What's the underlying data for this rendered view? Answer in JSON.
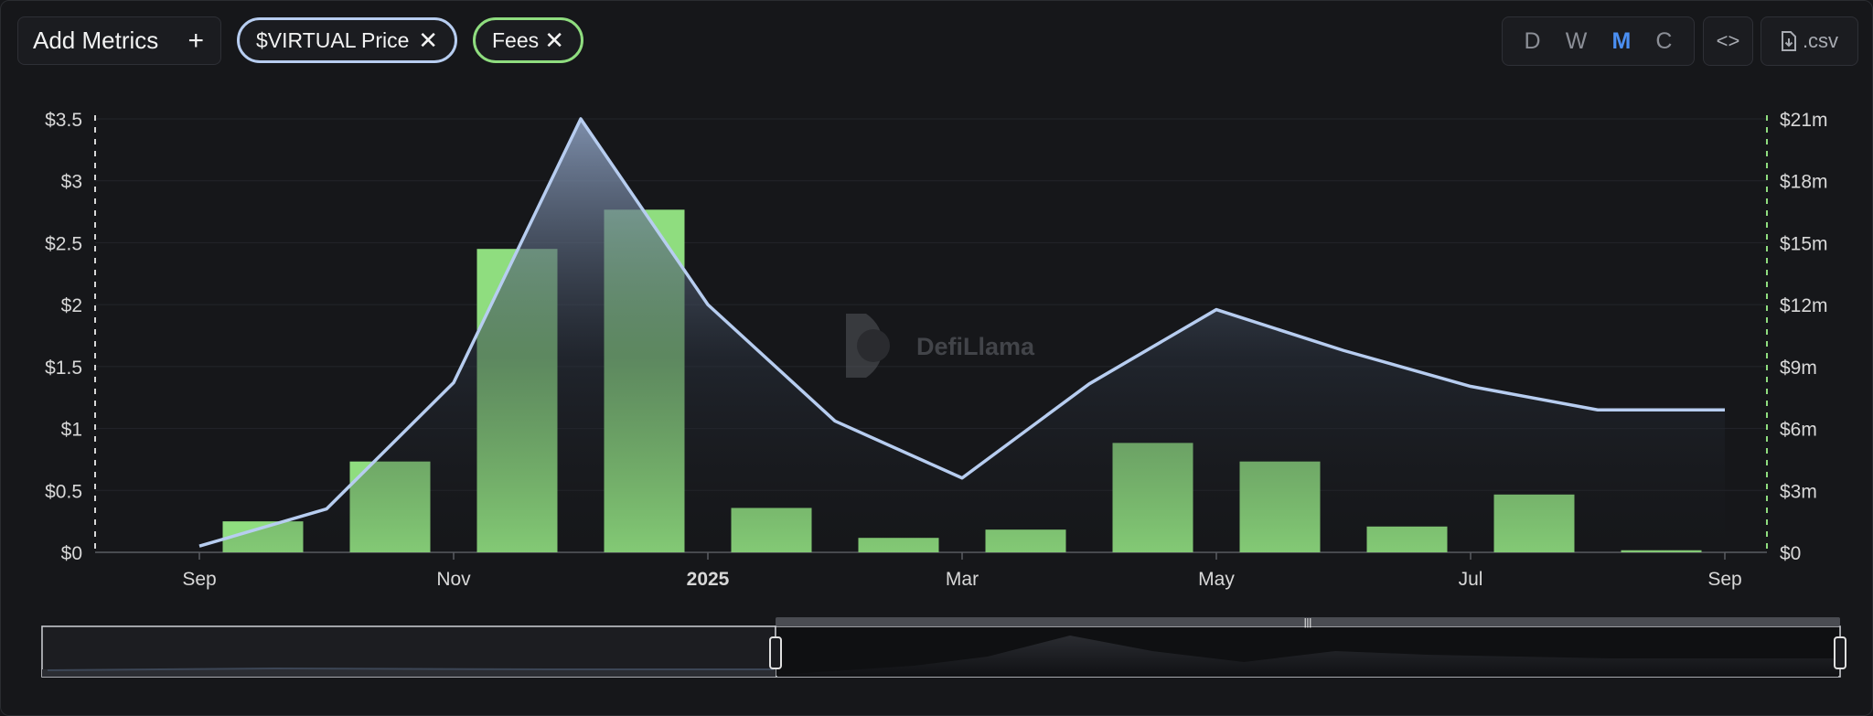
{
  "toolbar": {
    "add_metrics_label": "Add Metrics",
    "metrics": [
      {
        "label": "$VIRTUAL Price",
        "color": "#b7cdf0"
      },
      {
        "label": "Fees",
        "color": "#8fdd7f"
      }
    ],
    "intervals": [
      "D",
      "W",
      "M",
      "C"
    ],
    "active_interval": "M",
    "csv_label": ".csv"
  },
  "watermark": {
    "text": "DefiLlama"
  },
  "chart_data": {
    "type": "line+bar",
    "x_labels": [
      "Sep",
      "Nov",
      "2025",
      "Mar",
      "May",
      "Jul",
      "Sep"
    ],
    "y_left_ticks": [
      "$0",
      "$0.5",
      "$1",
      "$1.5",
      "$2",
      "$2.5",
      "$3",
      "$3.5"
    ],
    "y_right_ticks": [
      "$0",
      "$3m",
      "$6m",
      "$9m",
      "$12m",
      "$15m",
      "$18m",
      "$21m"
    ],
    "y_left_range": [
      0,
      3.5
    ],
    "y_right_range": [
      0,
      21000000
    ],
    "x_range": [
      "2024-09",
      "2025-09"
    ],
    "grid": true,
    "series": [
      {
        "name": "$VIRTUAL Price",
        "type": "line-area",
        "axis": "left",
        "color": "#b7cdf0",
        "points": [
          {
            "x": "2024-09",
            "y": 0.05
          },
          {
            "x": "2024-10",
            "y": 0.35
          },
          {
            "x": "2024-11",
            "y": 1.37
          },
          {
            "x": "2024-12",
            "y": 3.5
          },
          {
            "x": "2025-01",
            "y": 2.0
          },
          {
            "x": "2025-02",
            "y": 1.06
          },
          {
            "x": "2025-03",
            "y": 0.6
          },
          {
            "x": "2025-04",
            "y": 1.36
          },
          {
            "x": "2025-05",
            "y": 1.96
          },
          {
            "x": "2025-06",
            "y": 1.63
          },
          {
            "x": "2025-07",
            "y": 1.34
          },
          {
            "x": "2025-08",
            "y": 1.15
          },
          {
            "x": "2025-09",
            "y": 1.15
          }
        ]
      },
      {
        "name": "Fees",
        "type": "bar",
        "axis": "right",
        "color": "#8fdd7f",
        "points": [
          {
            "x": "2024-10",
            "y": 1500000
          },
          {
            "x": "2024-11",
            "y": 4400000
          },
          {
            "x": "2024-12",
            "y": 14700000
          },
          {
            "x": "2025-01",
            "y": 16600000
          },
          {
            "x": "2025-02",
            "y": 2150000
          },
          {
            "x": "2025-03",
            "y": 700000
          },
          {
            "x": "2025-04",
            "y": 1100000
          },
          {
            "x": "2025-05",
            "y": 5300000
          },
          {
            "x": "2025-06",
            "y": 4400000
          },
          {
            "x": "2025-07",
            "y": 1250000
          },
          {
            "x": "2025-08",
            "y": 2800000
          },
          {
            "x": "2025-09",
            "y": 100000
          }
        ]
      }
    ]
  }
}
